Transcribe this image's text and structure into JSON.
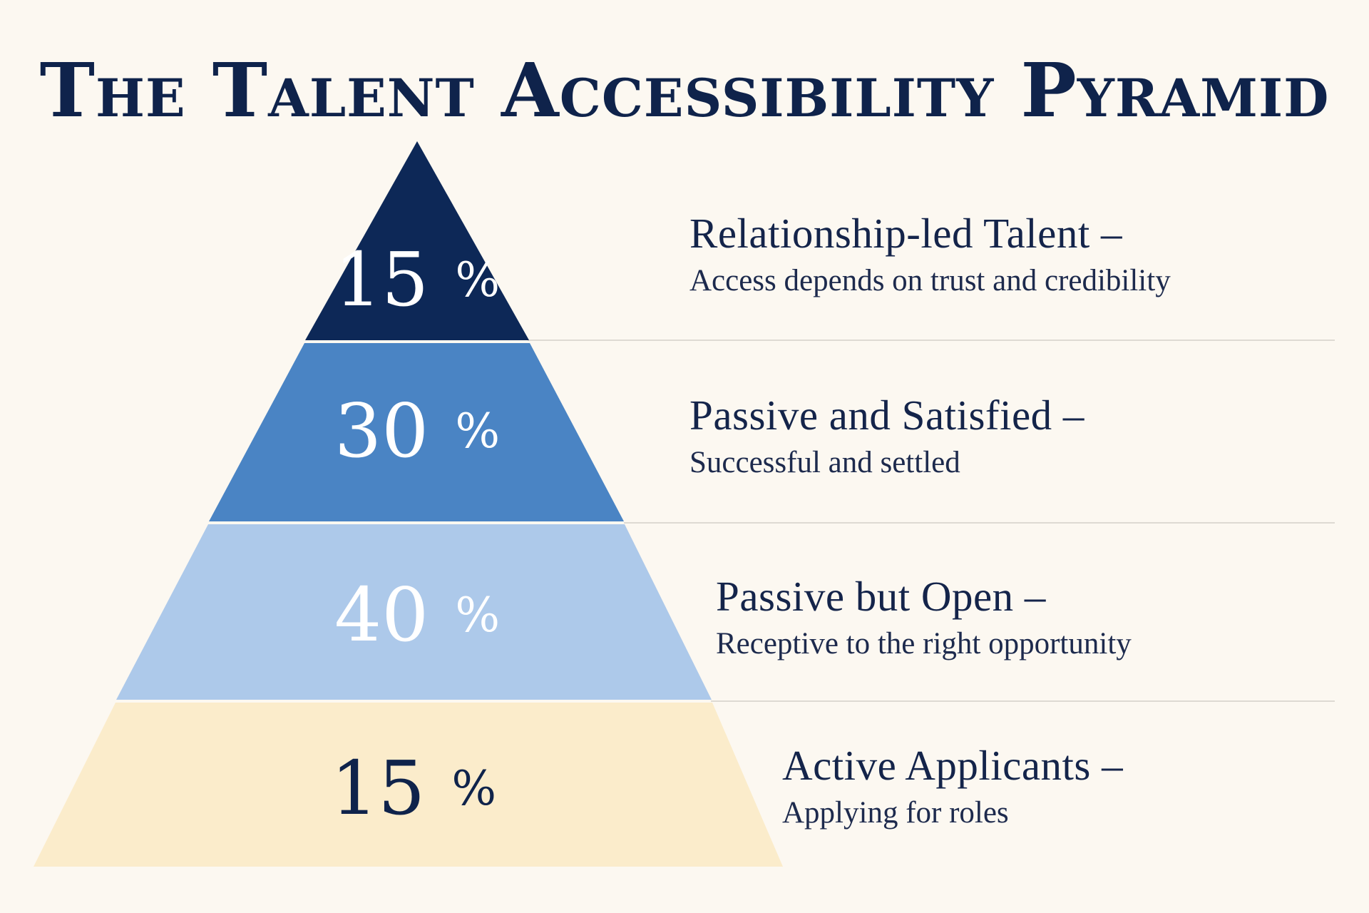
{
  "title": "The Talent Accessibility Pyramid",
  "colors": {
    "background": "#fcf8f1",
    "title": "#0f234b",
    "divider": "#dedad3"
  },
  "tiers": [
    {
      "percent": "15%",
      "value": 15,
      "heading": "Relationship-led Talent –",
      "description": "Access depends on trust and credibility",
      "fill": "#0d2857",
      "label_color": "#ffffff"
    },
    {
      "percent": "30%",
      "value": 30,
      "heading": "Passive and Satisfied –",
      "description": "Successful and settled",
      "fill": "#4a84c4",
      "label_color": "#ffffff"
    },
    {
      "percent": "40%",
      "value": 40,
      "heading": "Passive but Open –",
      "description": "Receptive to the right opportunity",
      "fill": "#adc9ea",
      "label_color": "#ffffff"
    },
    {
      "percent": "15%",
      "value": 15,
      "heading": "Active Applicants –",
      "description": "Applying for roles",
      "fill": "#fbeccb",
      "label_color": "#0f234b"
    }
  ]
}
